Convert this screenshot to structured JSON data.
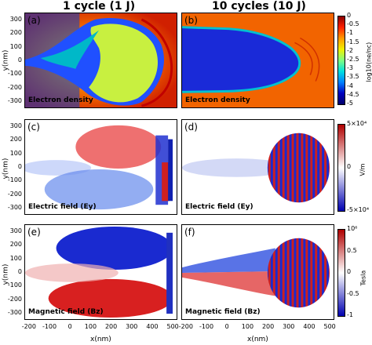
{
  "columns": [
    "1 cycle (1 J)",
    "10 cycles (10 J)"
  ],
  "panels": [
    {
      "letter": "(a)",
      "name": "Electron density"
    },
    {
      "letter": "(b)",
      "name": "Electron density"
    },
    {
      "letter": "(c)",
      "name": "Electric field (Ey)"
    },
    {
      "letter": "(d)",
      "name": "Electric field (Ey)"
    },
    {
      "letter": "(e)",
      "name": "Magnetic field (Bz)"
    },
    {
      "letter": "(f)",
      "name": "Magnetic field (Bz)"
    }
  ],
  "y_axis": {
    "label": "y(nm)",
    "ticks": [
      "300",
      "200",
      "100",
      "0",
      "-100",
      "-200",
      "-300"
    ]
  },
  "x_axis": {
    "label": "x(nm)",
    "ticks": [
      "-200",
      "-100",
      "0",
      "100",
      "200",
      "300",
      "400",
      "500"
    ]
  },
  "colorbars": [
    {
      "label": "log10(ne/nc)",
      "ticks": [
        "0",
        "-0.5",
        "-1",
        "-1.5",
        "-2",
        "-2.5",
        "-3",
        "-3.5",
        "-4",
        "-4.5",
        "-5"
      ]
    },
    {
      "label": "V/m",
      "ticks": [
        "5×10⁴",
        "0",
        "-5×10⁴"
      ]
    },
    {
      "label": "Tesla",
      "ticks": [
        "10⁶",
        "0.5",
        "0",
        "-0.5",
        "-1"
      ]
    }
  ],
  "colors": {
    "density_bg": "#ff6a00",
    "density_hole": "#0000c8",
    "red": "#cc2020",
    "blue": "#1a2ad0"
  }
}
